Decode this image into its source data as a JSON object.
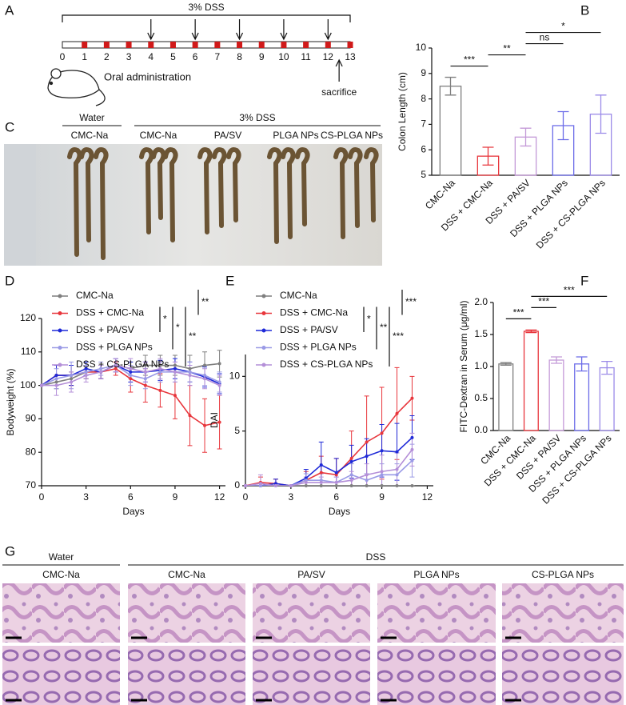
{
  "panel_labels": {
    "A": "A",
    "B": "B",
    "C": "C",
    "D": "D",
    "E": "E",
    "F": "F",
    "G": "G"
  },
  "timeline": {
    "title": "3% DSS",
    "days": [
      0,
      1,
      2,
      3,
      4,
      5,
      6,
      7,
      8,
      9,
      10,
      11,
      12,
      13
    ],
    "dss_days": [
      1,
      2,
      3,
      4,
      5,
      6,
      7,
      8,
      9,
      10,
      11,
      12,
      13
    ],
    "administration_days": [
      4,
      6,
      8,
      10,
      12
    ],
    "administration_label": "Oral administration",
    "sacrifice_day": 12.5,
    "sacrifice_label": "sacrifice"
  },
  "colon_photo": {
    "groups": [
      "Water",
      "3% DSS"
    ],
    "columns": [
      "CMC-Na",
      "CMC-Na",
      "PA/SV",
      "PLGA NPs",
      "CS-PLGA NPs"
    ]
  },
  "histology": {
    "groups": [
      "Water",
      "DSS"
    ],
    "columns": [
      "CMC-Na",
      "CMC-Na",
      "PA/SV",
      "PLGA NPs",
      "CS-PLGA NPs"
    ]
  },
  "chart_data": [
    {
      "type": "bar",
      "ylabel": "Colon Length (cm)",
      "categories": [
        "CMC-Na",
        "DSS + CMC-Na",
        "DSS + PA/SV",
        "DSS + PLGA NPs",
        "DSS + CS-PLGA NPs"
      ],
      "values": [
        8.5,
        5.75,
        6.5,
        6.95,
        7.4
      ],
      "errors": [
        0.35,
        0.35,
        0.35,
        0.55,
        0.75
      ],
      "colors": [
        "#7f7f7f",
        "#e8363c",
        "#c49ad8",
        "#6c6ce8",
        "#9b8be8"
      ],
      "ylim": [
        5,
        10
      ],
      "yticks": [
        5,
        6,
        7,
        8,
        9,
        10
      ],
      "annotations": [
        {
          "from": 0,
          "to": 1,
          "label": "***"
        },
        {
          "from": 1,
          "to": 2,
          "label": "**"
        },
        {
          "from": 2,
          "to": 3,
          "label": "ns"
        },
        {
          "from": 2,
          "to": 4,
          "label": "*"
        }
      ]
    },
    {
      "type": "line",
      "xlabel": "Days",
      "ylabel": "Bodyweight (%)",
      "x": [
        0,
        1,
        2,
        3,
        4,
        5,
        6,
        7,
        8,
        9,
        10,
        11,
        12
      ],
      "xlim": [
        0,
        12.4
      ],
      "xticks": [
        0,
        3,
        6,
        9,
        12
      ],
      "ylim": [
        70,
        120
      ],
      "yticks": [
        70,
        80,
        90,
        100,
        110,
        120
      ],
      "series": [
        {
          "name": "CMC-Na",
          "color": "#7f7f7f",
          "values": [
            100,
            101,
            102,
            104,
            104,
            106,
            105,
            106,
            106,
            106,
            105,
            106,
            106.5
          ],
          "errors": [
            0,
            2,
            2,
            2,
            2,
            2,
            2,
            3,
            3,
            3,
            4,
            4,
            4
          ]
        },
        {
          "name": "DSS + CMC-Na",
          "color": "#e8363c",
          "values": [
            100,
            103,
            103,
            104,
            104,
            105,
            102,
            100,
            98.5,
            97,
            91,
            88,
            89
          ],
          "errors": [
            0,
            3,
            3,
            2,
            2,
            2,
            4,
            5,
            5,
            7,
            9,
            8,
            8
          ]
        },
        {
          "name": "DSS + PA/SV",
          "color": "#1f2ad8",
          "values": [
            100,
            103,
            103,
            105,
            104,
            106,
            104,
            104,
            104.5,
            105,
            104,
            102.5,
            100.5
          ],
          "errors": [
            0,
            3,
            3,
            2,
            2,
            2,
            3,
            3,
            3,
            3,
            3,
            3,
            3
          ]
        },
        {
          "name": "DSS + PLGA NPs",
          "color": "#9a9ae6",
          "values": [
            100,
            102,
            103,
            104,
            105,
            106,
            103,
            102,
            104,
            104,
            104,
            103,
            101
          ],
          "errors": [
            0,
            3,
            4,
            2,
            2,
            2,
            3,
            3,
            3,
            3,
            3,
            3,
            3
          ]
        },
        {
          "name": "DSS + CS-PLGA NPs",
          "color": "#b48fd8",
          "values": [
            100,
            100,
            101,
            103,
            104,
            106,
            105,
            104,
            105,
            104,
            103,
            102,
            100
          ],
          "errors": [
            0,
            3,
            3,
            2,
            2,
            2,
            3,
            3,
            3,
            3,
            3,
            3,
            3
          ]
        }
      ],
      "annotations": [
        {
          "from": 0,
          "to": 1,
          "label": "**"
        },
        {
          "from": 1,
          "to": 2,
          "label": "*"
        },
        {
          "from": 1,
          "to": 3,
          "label": "*"
        },
        {
          "from": 1,
          "to": 4,
          "label": "**"
        }
      ]
    },
    {
      "type": "line",
      "xlabel": "Days",
      "ylabel": "DAI",
      "x": [
        0,
        1,
        2,
        3,
        4,
        5,
        6,
        7,
        8,
        9,
        10,
        11
      ],
      "xlim": [
        0,
        12.4
      ],
      "xticks": [
        0,
        3,
        6,
        9,
        12
      ],
      "ylim": [
        0,
        12
      ],
      "yticks": [
        0,
        5,
        10
      ],
      "series": [
        {
          "name": "CMC-Na",
          "color": "#7f7f7f",
          "values": [
            0,
            0,
            0,
            0,
            0,
            0,
            0,
            0,
            0,
            0,
            0,
            0
          ],
          "errors": [
            0,
            0,
            0,
            0,
            0,
            0,
            0,
            0,
            0,
            0,
            0,
            0
          ]
        },
        {
          "name": "DSS + CMC-Na",
          "color": "#e8363c",
          "values": [
            0,
            0.3,
            0.2,
            0,
            0.5,
            1.2,
            1,
            2.5,
            4,
            4.8,
            6.6,
            8
          ],
          "errors": [
            0,
            0.5,
            0.4,
            0,
            0.8,
            1.5,
            1.5,
            2.5,
            4.2,
            4.2,
            4.2,
            2
          ]
        },
        {
          "name": "DSS + PA/SV",
          "color": "#1f2ad8",
          "values": [
            0,
            0,
            0.2,
            0,
            0.7,
            1.9,
            1.2,
            2.2,
            2.7,
            3.2,
            3.1,
            4.4
          ],
          "errors": [
            0,
            0,
            0.4,
            0,
            0.8,
            2.1,
            1.3,
            1.5,
            1.6,
            2.4,
            2.6,
            2
          ]
        },
        {
          "name": "DSS + PLGA NPs",
          "color": "#9a9ae6",
          "values": [
            0,
            0,
            0,
            0,
            0.5,
            0.5,
            0.3,
            1,
            0.5,
            1,
            1,
            2.3
          ],
          "errors": [
            0,
            0,
            0,
            0,
            0.6,
            0.6,
            0.5,
            1,
            0.6,
            1,
            1,
            1.5
          ]
        },
        {
          "name": "DSS + CS-PLGA NPs",
          "color": "#b48fd8",
          "values": [
            0,
            0.2,
            0,
            0,
            0.3,
            0.3,
            0.3,
            0.5,
            1,
            1.3,
            1.5,
            3.3
          ],
          "errors": [
            0,
            0.8,
            0,
            0,
            0.5,
            0.5,
            0.5,
            0.8,
            1,
            1.5,
            1.5,
            1.5
          ]
        }
      ],
      "annotations": [
        {
          "from": 0,
          "to": 1,
          "label": "***"
        },
        {
          "from": 1,
          "to": 2,
          "label": "*"
        },
        {
          "from": 1,
          "to": 3,
          "label": "**"
        },
        {
          "from": 1,
          "to": 4,
          "label": "***"
        }
      ]
    },
    {
      "type": "bar",
      "ylabel": "FITC-Dextran in Serum (μg/ml)",
      "categories": [
        "CMC-Na",
        "DSS + CMC-Na",
        "DSS + PA/SV",
        "DSS + PLGA NPs",
        "DSS + CS-PLGA NPs"
      ],
      "values": [
        1.04,
        1.55,
        1.1,
        1.04,
        0.98
      ],
      "errors": [
        0.02,
        0.02,
        0.05,
        0.11,
        0.1
      ],
      "colors": [
        "#7f7f7f",
        "#e8363c",
        "#c49ad8",
        "#6c6ce8",
        "#9b8be8"
      ],
      "ylim": [
        0,
        2
      ],
      "yticks": [
        {
          "value": 0,
          "label": "0.0"
        },
        0.5,
        {
          "value": 1,
          "label": "1.0"
        },
        1.5,
        {
          "value": 2,
          "label": "2.0"
        }
      ],
      "annotations": [
        {
          "from": 0,
          "to": 1,
          "label": "***"
        },
        {
          "from": 1,
          "to": 2,
          "label": "***"
        },
        {
          "from": 1,
          "to": 4,
          "label": "***"
        }
      ]
    }
  ]
}
